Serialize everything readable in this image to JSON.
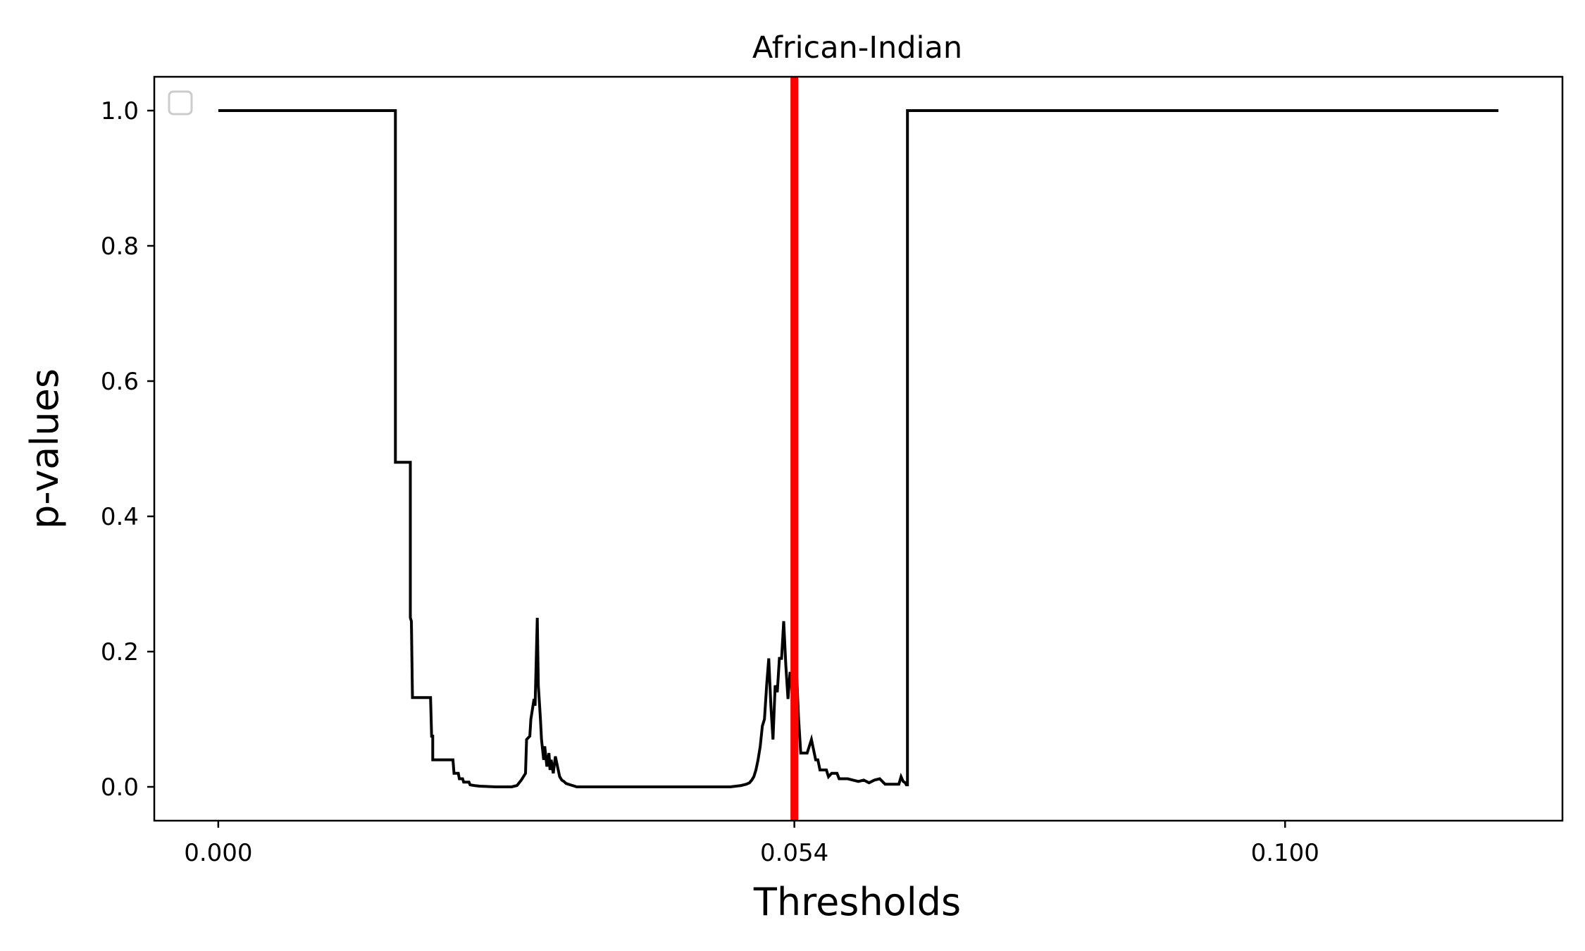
{
  "chart_data": {
    "type": "line",
    "title": "African-Indian",
    "xlabel": "Thresholds",
    "ylabel": "p-values",
    "xlim": [
      -0.006,
      0.126
    ],
    "ylim": [
      -0.05,
      1.05
    ],
    "x_ticks": [
      {
        "value": 0.0,
        "label": "0.000"
      },
      {
        "value": 0.054,
        "label": "0.054"
      },
      {
        "value": 0.1,
        "label": "0.100"
      }
    ],
    "y_ticks": [
      {
        "value": 0.0,
        "label": "0.0"
      },
      {
        "value": 0.2,
        "label": "0.2"
      },
      {
        "value": 0.4,
        "label": "0.4"
      },
      {
        "value": 0.6,
        "label": "0.6"
      },
      {
        "value": 0.8,
        "label": "0.8"
      },
      {
        "value": 1.0,
        "label": "1.0"
      }
    ],
    "grid": false,
    "legend": {
      "placement": "top-left",
      "entries": []
    },
    "vline": {
      "x": 0.054,
      "color": "#ff0000"
    },
    "colors": {
      "line": "#000000",
      "vline": "#ff0000",
      "frame": "#000000",
      "legend_border": "#cccccc"
    },
    "series": [
      {
        "x": [
          0.0,
          0.0166,
          0.0166,
          0.0167,
          0.0167,
          0.018,
          0.018,
          0.0181,
          0.0182,
          0.0182,
          0.0184,
          0.0199,
          0.02,
          0.0201,
          0.0201,
          0.021,
          0.0211,
          0.022,
          0.0221,
          0.0225,
          0.0226,
          0.0229,
          0.023,
          0.0235,
          0.0236,
          0.024,
          0.0245,
          0.026,
          0.027,
          0.0275,
          0.028,
          0.0284,
          0.0288,
          0.0289,
          0.0292,
          0.0293,
          0.0296,
          0.0297,
          0.0299,
          0.03,
          0.0302,
          0.0303,
          0.0305,
          0.0306,
          0.0308,
          0.031,
          0.0311,
          0.0312,
          0.0314,
          0.0316,
          0.0318,
          0.032,
          0.0322,
          0.0324,
          0.0326,
          0.0328,
          0.033,
          0.0332,
          0.0334,
          0.0336,
          0.034,
          0.0345,
          0.035,
          0.038,
          0.042,
          0.046,
          0.048,
          0.049,
          0.0495,
          0.0498,
          0.05,
          0.0502,
          0.0504,
          0.0506,
          0.0508,
          0.051,
          0.0512,
          0.0514,
          0.0516,
          0.0518,
          0.052,
          0.0522,
          0.0524,
          0.0526,
          0.0528,
          0.053,
          0.0532,
          0.0534,
          0.0536,
          0.0538,
          0.054,
          0.0542,
          0.0544,
          0.0546,
          0.0548,
          0.055,
          0.0552,
          0.0556,
          0.056,
          0.0562,
          0.0564,
          0.0566,
          0.0568,
          0.057,
          0.0572,
          0.0575,
          0.058,
          0.0582,
          0.0585,
          0.059,
          0.0595,
          0.06,
          0.0605,
          0.061,
          0.0615,
          0.062,
          0.0625,
          0.063,
          0.0635,
          0.0638,
          0.064,
          0.0642,
          0.0644,
          0.0645,
          0.0646,
          0.0646,
          0.12
        ],
        "y": [
          1.0,
          1.0,
          0.48,
          0.48,
          0.48,
          0.48,
          0.25,
          0.245,
          0.132,
          0.132,
          0.132,
          0.132,
          0.075,
          0.075,
          0.04,
          0.04,
          0.04,
          0.04,
          0.02,
          0.02,
          0.012,
          0.012,
          0.007,
          0.007,
          0.003,
          0.002,
          0.001,
          0.0,
          0.0,
          0.0,
          0.002,
          0.01,
          0.02,
          0.07,
          0.075,
          0.1,
          0.13,
          0.12,
          0.25,
          0.15,
          0.1,
          0.07,
          0.04,
          0.06,
          0.03,
          0.05,
          0.025,
          0.04,
          0.02,
          0.045,
          0.03,
          0.015,
          0.01,
          0.008,
          0.005,
          0.004,
          0.003,
          0.002,
          0.001,
          0.0,
          0.0,
          0.0,
          0.0,
          0.0,
          0.0,
          0.0,
          0.0,
          0.002,
          0.004,
          0.006,
          0.01,
          0.015,
          0.025,
          0.04,
          0.06,
          0.09,
          0.1,
          0.15,
          0.19,
          0.12,
          0.07,
          0.15,
          0.14,
          0.19,
          0.19,
          0.245,
          0.18,
          0.13,
          0.17,
          0.14,
          0.17,
          0.17,
          0.1,
          0.05,
          0.05,
          0.05,
          0.05,
          0.07,
          0.04,
          0.04,
          0.025,
          0.025,
          0.025,
          0.025,
          0.015,
          0.02,
          0.02,
          0.012,
          0.012,
          0.012,
          0.01,
          0.008,
          0.01,
          0.006,
          0.01,
          0.012,
          0.004,
          0.004,
          0.004,
          0.004,
          0.015,
          0.008,
          0.006,
          0.003,
          0.003,
          1.0,
          1.0
        ]
      }
    ]
  }
}
